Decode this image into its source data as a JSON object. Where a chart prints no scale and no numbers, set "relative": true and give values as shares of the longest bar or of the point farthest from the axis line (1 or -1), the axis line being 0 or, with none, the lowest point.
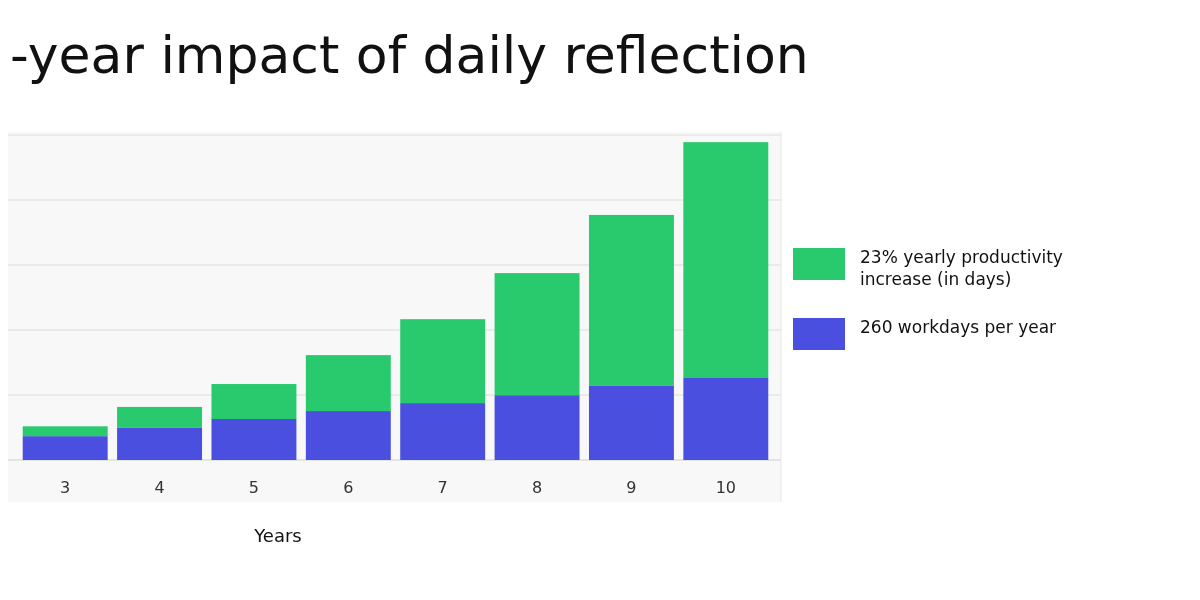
{
  "chart_data": {
    "type": "bar",
    "title": "-year impact of daily reflection",
    "xlabel": "Years",
    "categories": [
      "3",
      "4",
      "5",
      "6",
      "7",
      "8",
      "9",
      "10"
    ],
    "stacked": true,
    "relative": true,
    "grid": "y",
    "legend": "right",
    "series": [
      {
        "name": "260 workdays per year",
        "color": "#4a4fe0",
        "values": [
          0.075,
          0.101,
          0.129,
          0.154,
          0.179,
          0.204,
          0.233,
          0.258
        ]
      },
      {
        "name": "23% yearly productivity increase (in days)",
        "color": "#29c96e",
        "values": [
          0.031,
          0.066,
          0.11,
          0.176,
          0.264,
          0.384,
          0.538,
          0.742
        ]
      }
    ]
  }
}
